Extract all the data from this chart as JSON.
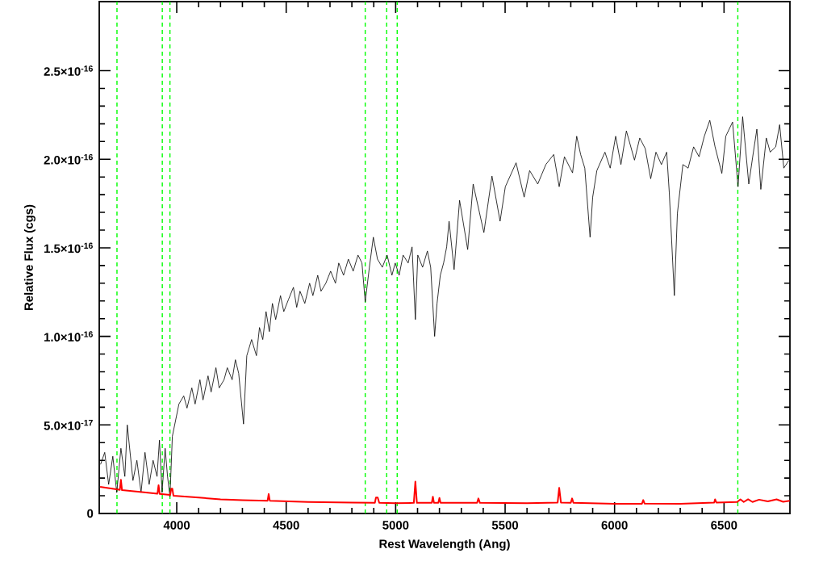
{
  "chart_data": {
    "type": "line",
    "xlabel": "Rest Wavelength (Ang)",
    "ylabel": "Relative Flux (cgs)",
    "xlim": [
      3646,
      6801
    ],
    "ylim": [
      0,
      2.89e-16
    ],
    "xticks": [
      4000,
      4500,
      5000,
      5500,
      6000,
      6500
    ],
    "yticks": [
      0,
      {
        "value": 5e-17,
        "label": "5.0×10$^{-17}$"
      },
      {
        "value": 1e-16,
        "label": "1.0×10$^{-16}$"
      },
      {
        "value": 1.5e-16,
        "label": "1.5×10$^{-16}$"
      },
      {
        "value": 2e-16,
        "label": "2.0×10$^{-16}$"
      },
      {
        "value": 2.5e-16,
        "label": "2.5×10$^{-16}$"
      }
    ],
    "grid": false,
    "marker": "none",
    "line_style": "solid",
    "ref_lines": [
      {
        "axis": "x",
        "value": 3727,
        "color": "#00ff00",
        "line_style": "dashed"
      },
      {
        "axis": "x",
        "value": 3934,
        "color": "#00ff00",
        "line_style": "dashed"
      },
      {
        "axis": "x",
        "value": 3969,
        "color": "#00ff00",
        "line_style": "dashed"
      },
      {
        "axis": "x",
        "value": 4861,
        "color": "#00ff00",
        "line_style": "dashed"
      },
      {
        "axis": "x",
        "value": 4959,
        "color": "#00ff00",
        "line_style": "dashed"
      },
      {
        "axis": "x",
        "value": 5007,
        "color": "#00ff00",
        "line_style": "dashed"
      },
      {
        "axis": "x",
        "value": 6563,
        "color": "#00ff00",
        "line_style": "dashed"
      }
    ],
    "series": [
      {
        "color": "#000000",
        "x": [
          3652,
          3671,
          3689,
          3708,
          3726,
          3745,
          3763,
          3774,
          3800,
          3818,
          3837,
          3855,
          3874,
          3892,
          3910,
          3921,
          3933,
          3947,
          3958,
          3969,
          3980,
          3995,
          4010,
          4032,
          4047,
          4069,
          4084,
          4106,
          4120,
          4143,
          4157,
          4179,
          4194,
          4216,
          4231,
          4253,
          4268,
          4283,
          4305,
          4320,
          4342,
          4364,
          4378,
          4393,
          4408,
          4423,
          4437,
          4452,
          4474,
          4489,
          4511,
          4533,
          4548,
          4563,
          4585,
          4607,
          4622,
          4644,
          4659,
          4681,
          4703,
          4725,
          4740,
          4762,
          4784,
          4806,
          4828,
          4846,
          4861,
          4880,
          4898,
          4917,
          4939,
          4961,
          4983,
          4998,
          5016,
          5034,
          5057,
          5075,
          5090,
          5101,
          5123,
          5145,
          5160,
          5178,
          5189,
          5204,
          5219,
          5233,
          5244,
          5267,
          5292,
          5329,
          5354,
          5403,
          5440,
          5477,
          5501,
          5550,
          5587,
          5612,
          5649,
          5686,
          5722,
          5747,
          5771,
          5808,
          5827,
          5845,
          5864,
          5888,
          5900,
          5919,
          5956,
          5980,
          6005,
          6029,
          6054,
          6091,
          6115,
          6140,
          6165,
          6189,
          6214,
          6238,
          6250,
          6273,
          6287,
          6312,
          6336,
          6361,
          6386,
          6410,
          6435,
          6459,
          6490,
          6508,
          6539,
          6564,
          6585,
          6613,
          6631,
          6650,
          6668,
          6693,
          6711,
          6736,
          6754,
          6773,
          6797
        ],
        "values": [
          2.77e-17,
          3.45e-17,
          1.64e-17,
          3.23e-17,
          1.18e-17,
          3.68e-17,
          2.09e-17,
          5e-17,
          1.86e-17,
          3e-17,
          1.18e-17,
          3.45e-17,
          1.64e-17,
          3e-17,
          2.09e-17,
          4.14e-17,
          1.18e-17,
          3.68e-17,
          2.09e-17,
          9.5e-18,
          4.36e-17,
          5.27e-17,
          6.18e-17,
          6.64e-17,
          5.95e-17,
          7.09e-17,
          6.18e-17,
          7.55e-17,
          6.41e-17,
          7.77e-17,
          6.86e-17,
          8.23e-17,
          7.09e-17,
          7.55e-17,
          8.23e-17,
          7.55e-17,
          8.68e-17,
          7.91e-17,
          5.05e-17,
          8.91e-17,
          9.82e-17,
          8.91e-17,
          1.05e-16,
          9.82e-17,
          1.14e-16,
          1.027e-16,
          1.186e-16,
          1.095e-16,
          1.23e-16,
          1.14e-16,
          1.21e-16,
          1.277e-16,
          1.164e-16,
          1.255e-16,
          1.186e-16,
          1.3e-16,
          1.23e-16,
          1.345e-16,
          1.255e-16,
          1.3e-16,
          1.368e-16,
          1.3e-16,
          1.414e-16,
          1.345e-16,
          1.436e-16,
          1.368e-16,
          1.459e-16,
          1.414e-16,
          1.195e-16,
          1.39e-16,
          1.56e-16,
          1.436e-16,
          1.39e-16,
          1.459e-16,
          1.345e-16,
          1.414e-16,
          1.345e-16,
          1.459e-16,
          1.414e-16,
          1.505e-16,
          1.095e-16,
          1.459e-16,
          1.39e-16,
          1.482e-16,
          1.39e-16,
          1e-16,
          1.186e-16,
          1.345e-16,
          1.414e-16,
          1.505e-16,
          1.65e-16,
          1.377e-16,
          1.768e-16,
          1.49e-16,
          1.86e-16,
          1.586e-16,
          1.905e-16,
          1.65e-16,
          1.845e-16,
          1.98e-16,
          1.786e-16,
          1.936e-16,
          1.86e-16,
          1.97e-16,
          2.027e-16,
          1.845e-16,
          2.014e-16,
          1.923e-16,
          2.13e-16,
          2.027e-16,
          1.95e-16,
          1.56e-16,
          1.786e-16,
          1.936e-16,
          2.04e-16,
          1.95e-16,
          2.13e-16,
          1.97e-16,
          2.16e-16,
          1.995e-16,
          2.12e-16,
          2.06e-16,
          1.89e-16,
          2.04e-16,
          1.97e-16,
          2.04e-16,
          1.81e-16,
          1.23e-16,
          1.695e-16,
          1.97e-16,
          1.95e-16,
          2.07e-16,
          2.014e-16,
          2.13e-16,
          2.22e-16,
          2.07e-16,
          1.92e-16,
          2.13e-16,
          2.21e-16,
          1.845e-16,
          2.24e-16,
          1.86e-16,
          2.014e-16,
          2.17e-16,
          1.83e-16,
          2.12e-16,
          2.04e-16,
          2.07e-16,
          2.195e-16,
          1.95e-16,
          1.995e-16
        ]
      },
      {
        "color": "#ff0000",
        "x": [
          3650,
          3730,
          3740,
          3745,
          3750,
          3850,
          3912,
          3917,
          3922,
          3970,
          3975,
          3980,
          3985,
          4100,
          4200,
          4300,
          4415,
          4420,
          4425,
          4600,
          4800,
          4905,
          4910,
          4918,
          4925,
          5000,
          5083,
          5090,
          5097,
          5165,
          5170,
          5175,
          5195,
          5200,
          5205,
          5372,
          5378,
          5385,
          5600,
          5740,
          5747,
          5755,
          5800,
          5806,
          5812,
          6000,
          6125,
          6131,
          6137,
          6300,
          6455,
          6459,
          6465,
          6560,
          6575,
          6590,
          6610,
          6630,
          6660,
          6700,
          6740,
          6770,
          6800
        ],
        "values": [
          1.5e-17,
          1.36e-17,
          1.33e-17,
          1.9e-17,
          1.32e-17,
          1.2e-17,
          1.12e-17,
          1.6e-17,
          1.1e-17,
          1.05e-17,
          1.4e-17,
          1.4e-17,
          1e-17,
          9e-18,
          8e-18,
          7.5e-18,
          7.2e-18,
          1.1e-17,
          7.2e-18,
          6.5e-18,
          6.2e-18,
          6e-18,
          9e-18,
          9e-18,
          6e-18,
          5.8e-18,
          6e-18,
          1.8e-17,
          6e-18,
          6e-18,
          9.5e-18,
          6e-18,
          6e-18,
          8.8e-18,
          6e-18,
          6e-18,
          8.5e-18,
          6e-18,
          5.8e-18,
          6.2e-18,
          1.45e-17,
          6.2e-18,
          6e-18,
          8.5e-18,
          6e-18,
          5.5e-18,
          5.5e-18,
          7.6e-18,
          5.6e-18,
          5.5e-18,
          6.2e-18,
          8e-18,
          6.2e-18,
          6.5e-18,
          8e-18,
          6.5e-18,
          8e-18,
          6.5e-18,
          7.8e-18,
          6.8e-18,
          8e-18,
          6.6e-18,
          7.2e-18
        ]
      }
    ]
  }
}
